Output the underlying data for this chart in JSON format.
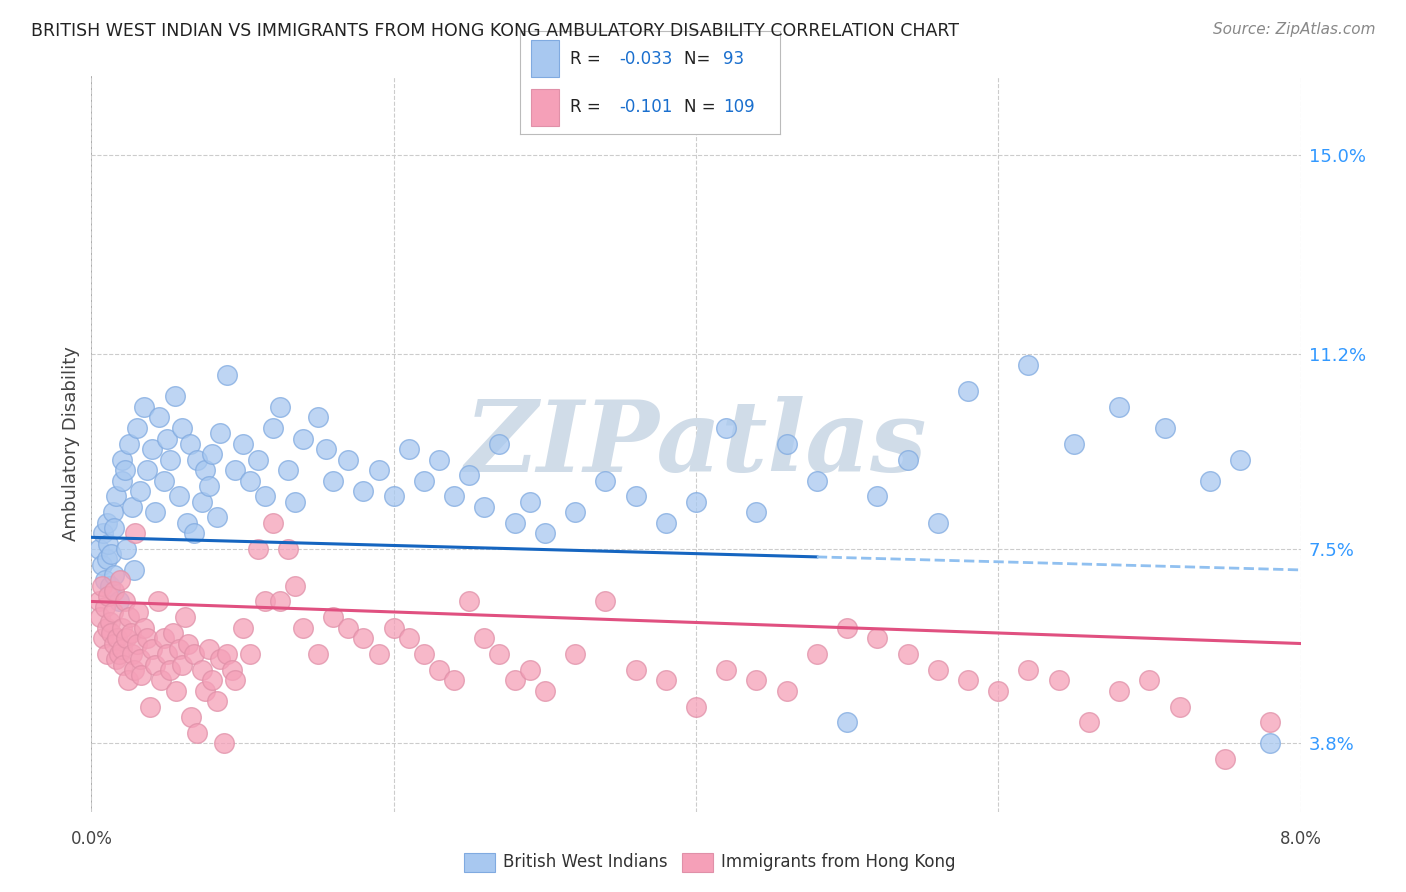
{
  "title": "BRITISH WEST INDIAN VS IMMIGRANTS FROM HONG KONG AMBULATORY DISABILITY CORRELATION CHART",
  "source": "Source: ZipAtlas.com",
  "ylabel": "Ambulatory Disability",
  "yticks": [
    3.8,
    7.5,
    11.2,
    15.0
  ],
  "xlim": [
    0.0,
    8.0
  ],
  "ylim": [
    2.5,
    16.5
  ],
  "series1": {
    "name": "British West Indians",
    "color": "#a8c8f0",
    "R": -0.033,
    "N": 93,
    "solid_color": "#1565c0",
    "dash_color": "#90c0f0",
    "trend_x0": 0.0,
    "trend_y0": 7.72,
    "trend_x1": 8.0,
    "trend_y1": 7.1
  },
  "series2": {
    "name": "Immigrants from Hong Kong",
    "color": "#f5a0b8",
    "R": -0.101,
    "N": 109,
    "line_color": "#e05080",
    "trend_x0": 0.0,
    "trend_y0": 6.5,
    "trend_x1": 8.0,
    "trend_y1": 5.7
  },
  "blue_x": [
    0.05,
    0.07,
    0.08,
    0.09,
    0.1,
    0.1,
    0.11,
    0.12,
    0.13,
    0.14,
    0.15,
    0.15,
    0.16,
    0.18,
    0.2,
    0.2,
    0.22,
    0.23,
    0.25,
    0.27,
    0.28,
    0.3,
    0.32,
    0.35,
    0.37,
    0.4,
    0.42,
    0.45,
    0.48,
    0.5,
    0.52,
    0.55,
    0.58,
    0.6,
    0.63,
    0.65,
    0.68,
    0.7,
    0.73,
    0.75,
    0.78,
    0.8,
    0.83,
    0.85,
    0.9,
    0.95,
    1.0,
    1.05,
    1.1,
    1.15,
    1.2,
    1.25,
    1.3,
    1.35,
    1.4,
    1.5,
    1.55,
    1.6,
    1.7,
    1.8,
    1.9,
    2.0,
    2.1,
    2.2,
    2.3,
    2.4,
    2.5,
    2.6,
    2.7,
    2.8,
    2.9,
    3.0,
    3.2,
    3.4,
    3.6,
    3.8,
    4.0,
    4.2,
    4.4,
    4.6,
    4.8,
    5.0,
    5.2,
    5.4,
    5.6,
    5.8,
    6.2,
    6.5,
    6.8,
    7.1,
    7.4,
    7.6,
    7.8
  ],
  "blue_y": [
    7.5,
    7.2,
    7.8,
    6.9,
    8.0,
    7.3,
    7.6,
    6.8,
    7.4,
    8.2,
    7.0,
    7.9,
    8.5,
    6.5,
    9.2,
    8.8,
    9.0,
    7.5,
    9.5,
    8.3,
    7.1,
    9.8,
    8.6,
    10.2,
    9.0,
    9.4,
    8.2,
    10.0,
    8.8,
    9.6,
    9.2,
    10.4,
    8.5,
    9.8,
    8.0,
    9.5,
    7.8,
    9.2,
    8.4,
    9.0,
    8.7,
    9.3,
    8.1,
    9.7,
    10.8,
    9.0,
    9.5,
    8.8,
    9.2,
    8.5,
    9.8,
    10.2,
    9.0,
    8.4,
    9.6,
    10.0,
    9.4,
    8.8,
    9.2,
    8.6,
    9.0,
    8.5,
    9.4,
    8.8,
    9.2,
    8.5,
    8.9,
    8.3,
    9.5,
    8.0,
    8.4,
    7.8,
    8.2,
    8.8,
    8.5,
    8.0,
    8.4,
    9.8,
    8.2,
    9.5,
    8.8,
    4.2,
    8.5,
    9.2,
    8.0,
    10.5,
    11.0,
    9.5,
    10.2,
    9.8,
    8.8,
    9.2,
    3.8
  ],
  "pink_x": [
    0.05,
    0.06,
    0.07,
    0.08,
    0.09,
    0.1,
    0.1,
    0.11,
    0.12,
    0.13,
    0.14,
    0.15,
    0.15,
    0.16,
    0.17,
    0.18,
    0.19,
    0.2,
    0.2,
    0.21,
    0.22,
    0.23,
    0.24,
    0.25,
    0.26,
    0.27,
    0.28,
    0.29,
    0.3,
    0.31,
    0.32,
    0.33,
    0.35,
    0.37,
    0.39,
    0.4,
    0.42,
    0.44,
    0.46,
    0.48,
    0.5,
    0.52,
    0.54,
    0.56,
    0.58,
    0.6,
    0.62,
    0.64,
    0.66,
    0.68,
    0.7,
    0.73,
    0.75,
    0.78,
    0.8,
    0.83,
    0.85,
    0.88,
    0.9,
    0.93,
    0.95,
    1.0,
    1.05,
    1.1,
    1.15,
    1.2,
    1.25,
    1.3,
    1.35,
    1.4,
    1.5,
    1.6,
    1.7,
    1.8,
    1.9,
    2.0,
    2.1,
    2.2,
    2.3,
    2.4,
    2.5,
    2.6,
    2.7,
    2.8,
    2.9,
    3.0,
    3.2,
    3.4,
    3.6,
    3.8,
    4.0,
    4.2,
    4.4,
    4.6,
    4.8,
    5.0,
    5.2,
    5.4,
    5.6,
    5.8,
    6.0,
    6.2,
    6.4,
    6.6,
    6.8,
    7.0,
    7.2,
    7.5,
    7.8
  ],
  "pink_y": [
    6.5,
    6.2,
    6.8,
    5.8,
    6.4,
    6.0,
    5.5,
    6.6,
    6.1,
    5.9,
    6.3,
    5.7,
    6.7,
    5.4,
    5.8,
    5.5,
    6.9,
    5.6,
    6.0,
    5.3,
    6.5,
    5.8,
    5.0,
    6.2,
    5.9,
    5.5,
    5.2,
    7.8,
    5.7,
    6.3,
    5.4,
    5.1,
    6.0,
    5.8,
    4.5,
    5.6,
    5.3,
    6.5,
    5.0,
    5.8,
    5.5,
    5.2,
    5.9,
    4.8,
    5.6,
    5.3,
    6.2,
    5.7,
    4.3,
    5.5,
    4.0,
    5.2,
    4.8,
    5.6,
    5.0,
    4.6,
    5.4,
    3.8,
    5.5,
    5.2,
    5.0,
    6.0,
    5.5,
    7.5,
    6.5,
    8.0,
    6.5,
    7.5,
    6.8,
    6.0,
    5.5,
    6.2,
    6.0,
    5.8,
    5.5,
    6.0,
    5.8,
    5.5,
    5.2,
    5.0,
    6.5,
    5.8,
    5.5,
    5.0,
    5.2,
    4.8,
    5.5,
    6.5,
    5.2,
    5.0,
    4.5,
    5.2,
    5.0,
    4.8,
    5.5,
    6.0,
    5.8,
    5.5,
    5.2,
    5.0,
    4.8,
    5.2,
    5.0,
    4.2,
    4.8,
    5.0,
    4.5,
    3.5,
    4.2
  ],
  "background_color": "#ffffff",
  "grid_color": "#cccccc",
  "watermark": "ZIPatlas",
  "watermark_color": "#d0dce8",
  "legend_R_color": "#1a6fce",
  "legend_N_color": "#1a6fce",
  "solid_dash_split": 4.8
}
